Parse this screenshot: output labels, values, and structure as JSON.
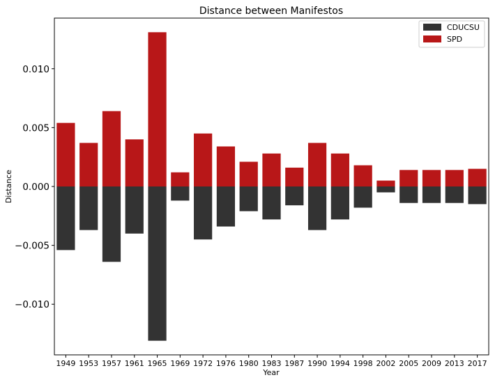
{
  "chart_data": {
    "type": "bar",
    "title": "Distance between Manifestos",
    "xlabel": "Year",
    "ylabel": "Distance",
    "categories": [
      "1949",
      "1953",
      "1957",
      "1961",
      "1965",
      "1969",
      "1972",
      "1976",
      "1980",
      "1983",
      "1987",
      "1990",
      "1994",
      "1998",
      "2002",
      "2005",
      "2009",
      "2013",
      "2017"
    ],
    "series": [
      {
        "name": "CDUCSU",
        "color": "#333333",
        "values": [
          -0.0054,
          -0.0037,
          -0.0064,
          -0.004,
          -0.0131,
          -0.0012,
          -0.0045,
          -0.0034,
          -0.0021,
          -0.0028,
          -0.0016,
          -0.0037,
          -0.0028,
          -0.0018,
          -0.0005,
          -0.0014,
          -0.0014,
          -0.0014,
          -0.0015
        ]
      },
      {
        "name": "SPD",
        "color": "#b81718",
        "values": [
          0.0054,
          0.0037,
          0.0064,
          0.004,
          0.0131,
          0.0012,
          0.0045,
          0.0034,
          0.0021,
          0.0028,
          0.0016,
          0.0037,
          0.0028,
          0.0018,
          0.0005,
          0.0014,
          0.0014,
          0.0014,
          0.0015
        ]
      }
    ],
    "yticks": [
      -0.01,
      -0.005,
      0.0,
      0.005,
      0.01
    ],
    "ytick_labels": [
      "−0.010",
      "−0.005",
      "0.000",
      "0.005",
      "0.010"
    ],
    "ylim": [
      -0.0143,
      0.0143
    ],
    "grid": false,
    "legend_position": "top-right"
  }
}
